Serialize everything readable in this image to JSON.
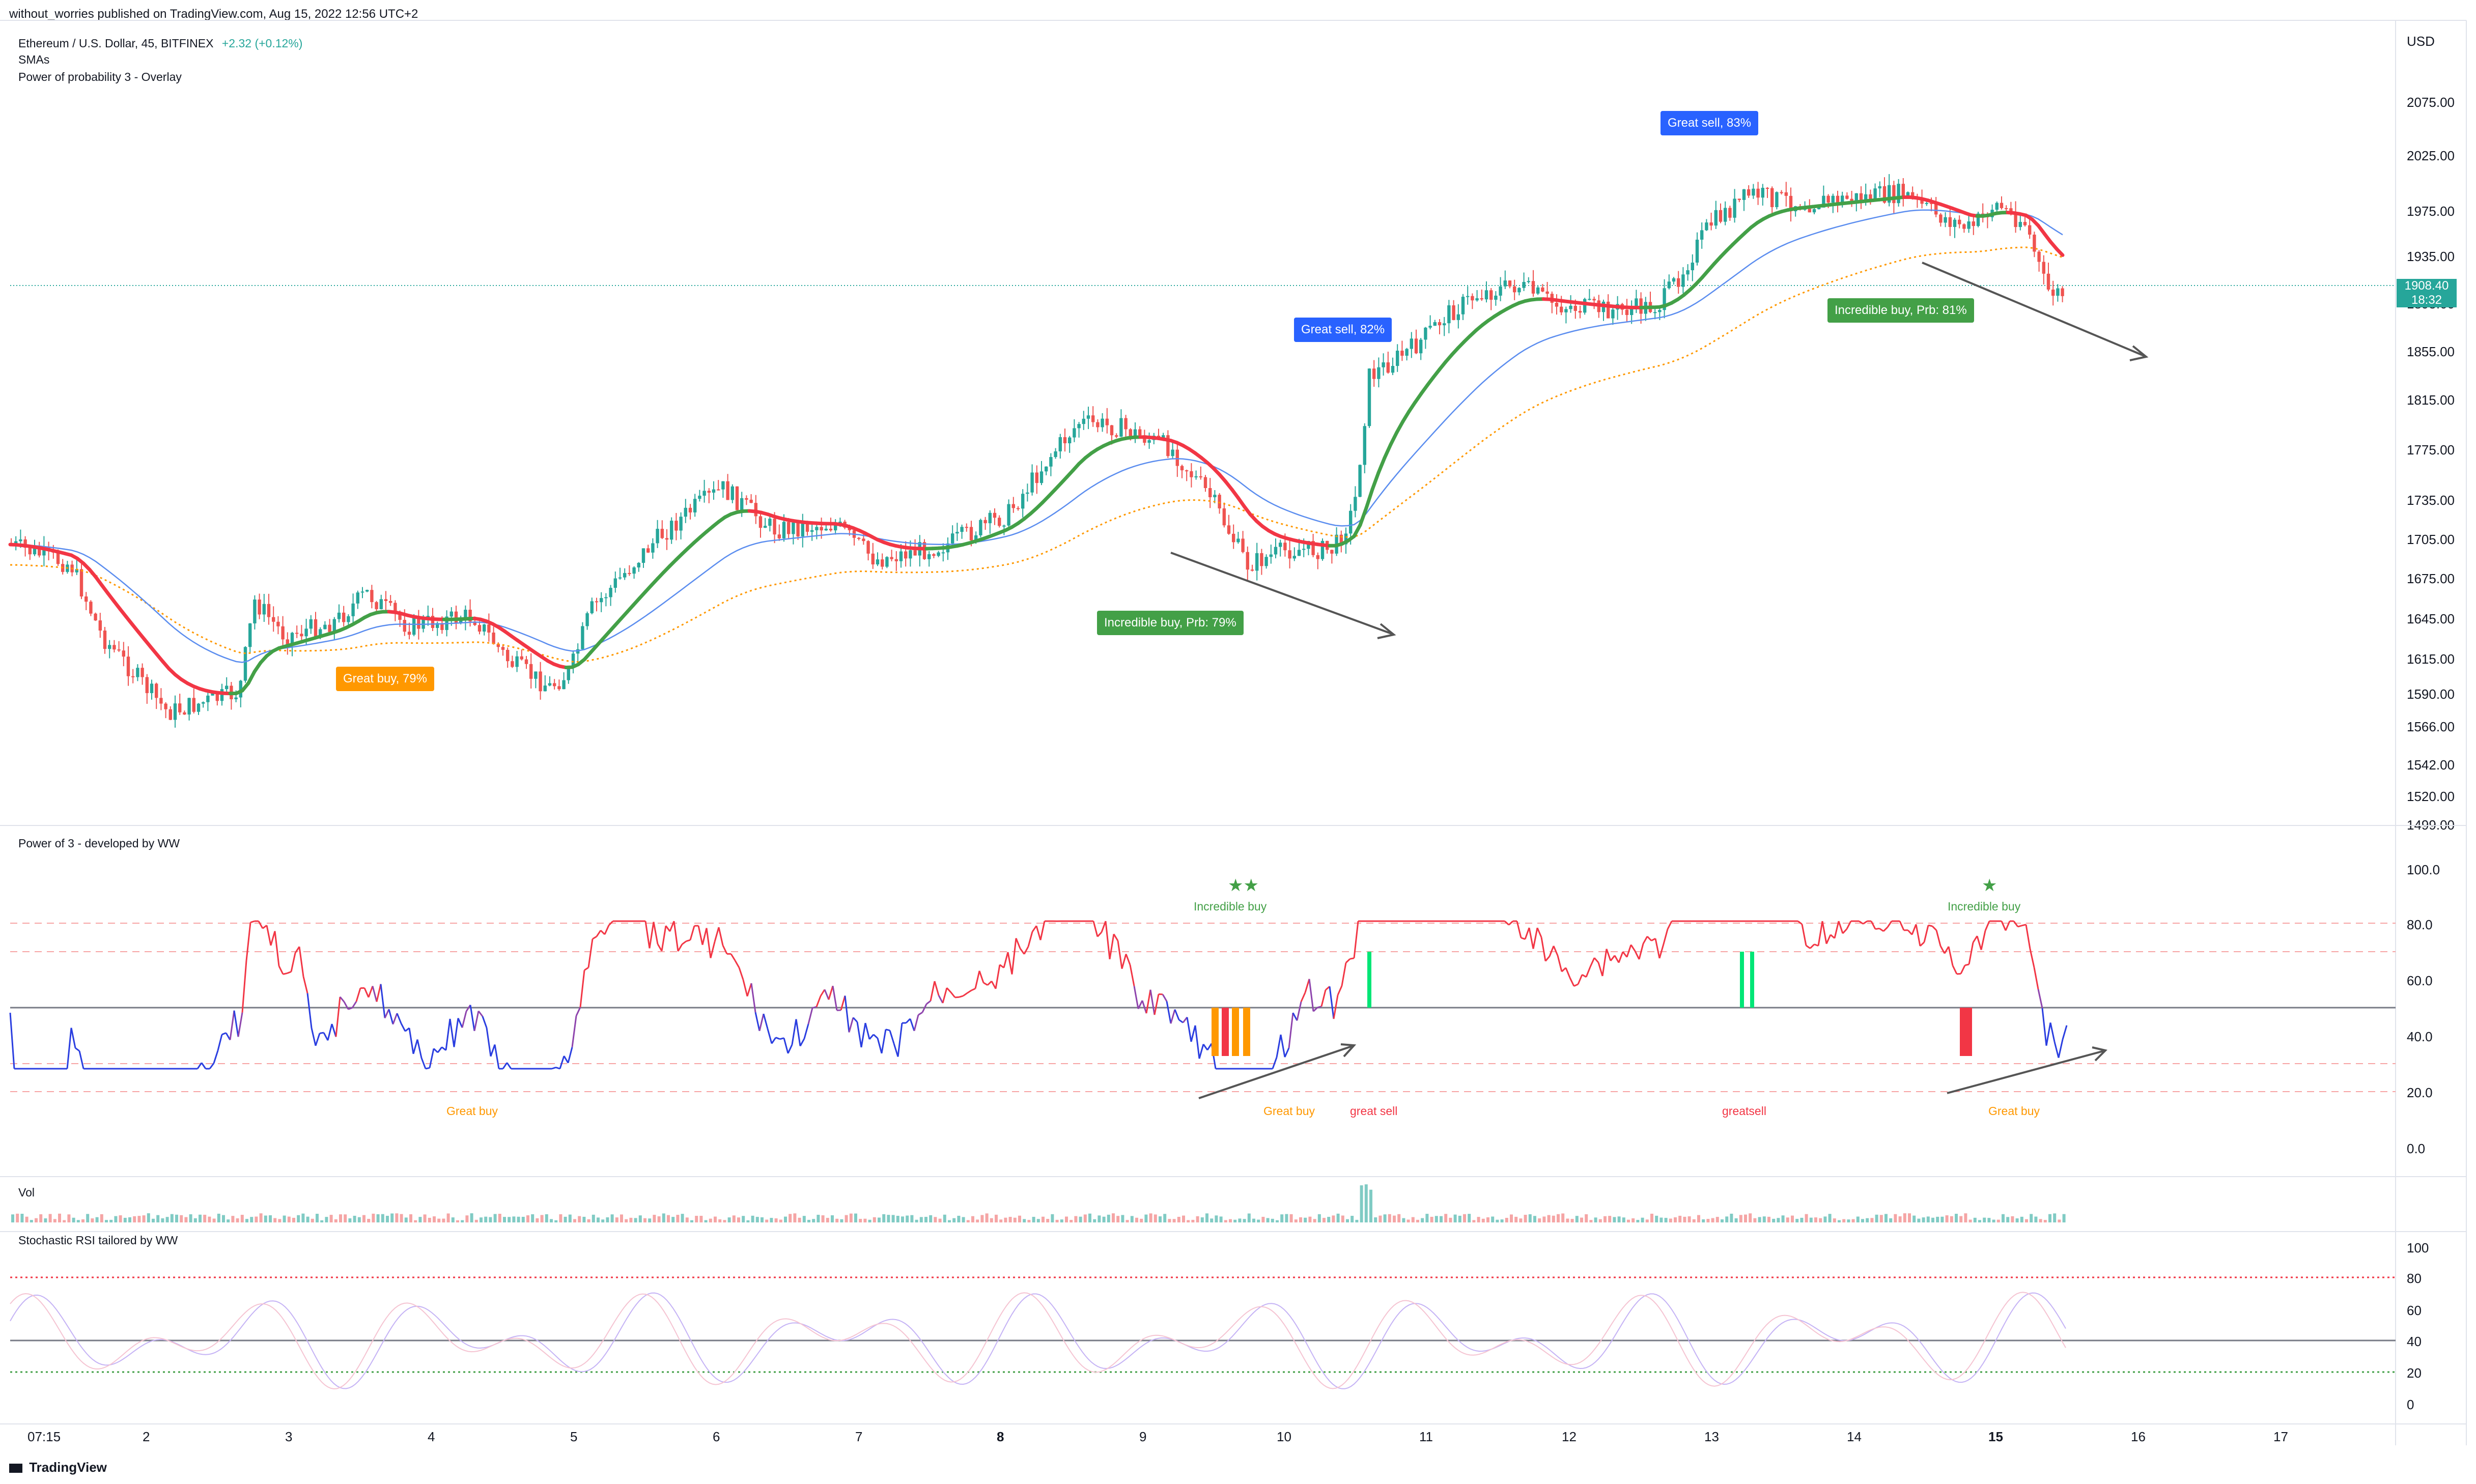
{
  "header": {
    "published": "without_worries published on TradingView.com, Aug 15, 2022 12:56 UTC+2"
  },
  "main_pane": {
    "symbol_line": "Ethereum / U.S. Dollar, 45, BITFINEX",
    "change": "+2.32 (+0.12%)",
    "indicator_1": "SMAs",
    "indicator_2": "Power of probability 3 - Overlay",
    "currency": "USD",
    "last_price": "1908.40",
    "countdown": "18:32",
    "price_axis": [
      "2075.00",
      "2025.00",
      "1975.00",
      "1935.00",
      "1895.00",
      "1855.00",
      "1815.00",
      "1775.00",
      "1735.00",
      "1705.00",
      "1675.00",
      "1645.00",
      "1615.00",
      "1590.00",
      "1566.00",
      "1542.00",
      "1520.00",
      "1499.00"
    ],
    "badges": {
      "great_buy": "Great buy,  79%",
      "incredible_buy_1": "Incredible buy, Prb: 79%",
      "great_sell_1": "Great sell, 82%",
      "great_sell_2": "Great sell, 83%",
      "incredible_buy_2": "Incredible buy, Prb: 81%"
    }
  },
  "power_pane": {
    "title": "Power of 3 - developed by WW",
    "axis": [
      "100.0",
      "80.0",
      "60.0",
      "40.0",
      "20.0",
      "0.0"
    ],
    "labels": {
      "great_buy_1": "Great buy",
      "great_buy_2": "Great buy",
      "great_sell_1": "great sell",
      "great_sell_2": "greatsell",
      "great_buy_3": "Great buy",
      "incredible_1": "Incredible buy",
      "incredible_2": "Incredible buy",
      "stars_1": "★★",
      "stars_2": "★"
    }
  },
  "vol_pane": {
    "title": "Vol"
  },
  "stoch_pane": {
    "title": "Stochastic RSI tailored by WW",
    "axis": [
      "100",
      "80",
      "60",
      "40",
      "20",
      "0"
    ]
  },
  "time_axis": [
    "07:15",
    "2",
    "3",
    "4",
    "5",
    "6",
    "7",
    "8",
    "9",
    "10",
    "11",
    "12",
    "13",
    "14",
    "15",
    "16",
    "17"
  ],
  "footer": {
    "brand": "TradingView"
  },
  "colors": {
    "up": "#26a69a",
    "down": "#ef5350",
    "ema_fast_up": "#43a047",
    "ema_fast_down": "#f23645",
    "sma_blue": "#5b8def",
    "sma_orange": "#ff9800",
    "osc_blue": "#2a3ee0",
    "osc_red": "#f23645"
  }
}
